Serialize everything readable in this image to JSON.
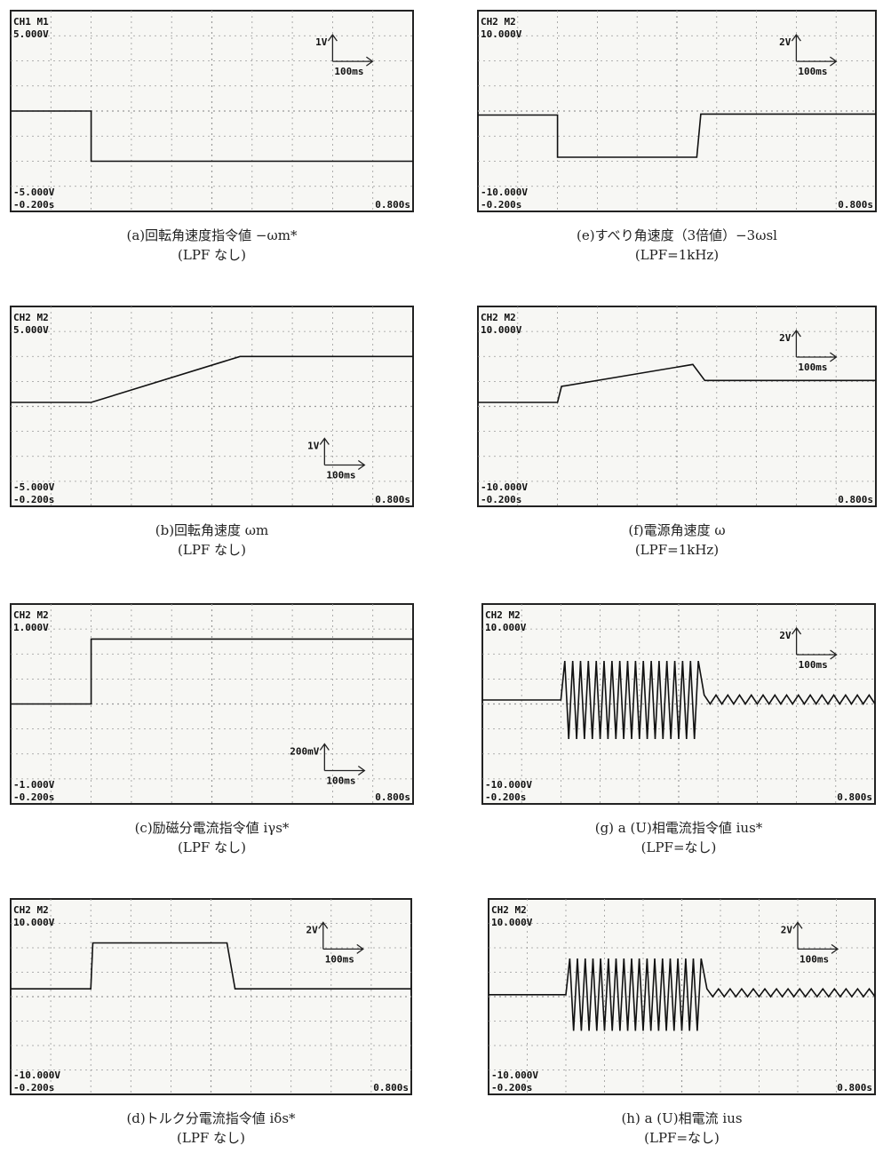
{
  "chart_data": [
    {
      "type": "line",
      "title": "(a)回転角速度指令値 −ωm*",
      "subtitle": "(LPF なし)",
      "channel": "CH1 M1",
      "annotations": [
        "1V",
        "100ms"
      ],
      "grid": true,
      "xlim": [
        -0.2,
        0.8
      ],
      "ylim": [
        -5,
        5
      ],
      "xticks": [
        {
          "value": -0.2,
          "label": "-0.200s"
        },
        {
          "value": 0.8,
          "label": "0.800s"
        }
      ],
      "yticks": [
        {
          "value": -5,
          "label": "-5.000V"
        },
        {
          "value": 5,
          "label": "5.000V"
        }
      ],
      "x": [
        -0.2,
        0,
        0,
        0.8
      ],
      "series": [
        {
          "color": "#111111",
          "values": [
            0,
            0,
            -2.5,
            -2.5
          ]
        }
      ]
    },
    {
      "type": "line",
      "title": "(b)回転角速度 ωm",
      "subtitle": "(LPF なし)",
      "channel": "CH2 M2",
      "annotations": [
        "1V",
        "100ms"
      ],
      "grid": true,
      "xlim": [
        -0.2,
        0.8
      ],
      "ylim": [
        -5,
        5
      ],
      "xticks": [
        {
          "value": -0.2,
          "label": "-0.200s"
        },
        {
          "value": 0.8,
          "label": "0.800s"
        }
      ],
      "yticks": [
        {
          "value": -5,
          "label": "-5.000V"
        },
        {
          "value": 5,
          "label": "5.000V"
        }
      ],
      "x": [
        -0.2,
        0,
        0.37,
        0.8
      ],
      "series": [
        {
          "color": "#111111",
          "values": [
            0.2,
            0.2,
            2.5,
            2.5
          ]
        }
      ]
    },
    {
      "type": "line",
      "title": "(c)励磁分電流指令値 iγs*",
      "subtitle": "(LPF なし)",
      "channel": "CH2 M2",
      "annotations": [
        "200mV",
        "100ms"
      ],
      "grid": true,
      "xlim": [
        -0.2,
        0.8
      ],
      "ylim": [
        -1,
        1
      ],
      "xticks": [
        {
          "value": -0.2,
          "label": "-0.200s"
        },
        {
          "value": 0.8,
          "label": "0.800s"
        }
      ],
      "yticks": [
        {
          "value": -1,
          "label": "-1.000V"
        },
        {
          "value": 1,
          "label": "1.000V"
        }
      ],
      "x": [
        -0.2,
        0,
        0,
        0.8
      ],
      "series": [
        {
          "color": "#111111",
          "values": [
            0,
            0,
            0.65,
            0.65
          ]
        }
      ]
    },
    {
      "type": "line",
      "title": "(d)トルク分電流指令値 iδs*",
      "subtitle": "(LPF なし)",
      "channel": "CH2 M2",
      "annotations": [
        "2V",
        "100ms"
      ],
      "grid": true,
      "xlim": [
        -0.2,
        0.8
      ],
      "ylim": [
        -10,
        10
      ],
      "xticks": [
        {
          "value": -0.2,
          "label": "-0.200s"
        },
        {
          "value": 0.8,
          "label": "0.800s"
        }
      ],
      "yticks": [
        {
          "value": -10,
          "label": "-10.000V"
        },
        {
          "value": 10,
          "label": "10.000V"
        }
      ],
      "x": [
        -0.2,
        0,
        0.005,
        0.34,
        0.36,
        0.8
      ],
      "series": [
        {
          "color": "#111111",
          "values": [
            0.8,
            0.8,
            5.5,
            5.5,
            0.8,
            0.8
          ]
        }
      ]
    },
    {
      "type": "line",
      "title": "(e)すべり角速度（3倍値）−3ωsl",
      "subtitle": "(LPF=1kHz)",
      "channel": "CH2 M2",
      "annotations": [
        "2V",
        "100ms"
      ],
      "grid": true,
      "xlim": [
        -0.2,
        0.8
      ],
      "ylim": [
        -10,
        10
      ],
      "xticks": [
        {
          "value": -0.2,
          "label": "-0.200s"
        },
        {
          "value": 0.8,
          "label": "0.800s"
        }
      ],
      "yticks": [
        {
          "value": -10,
          "label": "-10.000V"
        },
        {
          "value": 10,
          "label": "10.000V"
        }
      ],
      "x": [
        -0.2,
        0,
        0,
        0.35,
        0.36,
        0.8
      ],
      "series": [
        {
          "color": "#111111",
          "values": [
            -0.4,
            -0.4,
            -4.6,
            -4.6,
            -0.3,
            -0.3
          ]
        }
      ]
    },
    {
      "type": "line",
      "title": "(f)電源角速度 ω",
      "subtitle": "(LPF=1kHz)",
      "channel": "CH2 M2",
      "annotations": [
        "2V",
        "100ms"
      ],
      "grid": true,
      "xlim": [
        -0.2,
        0.8
      ],
      "ylim": [
        -10,
        10
      ],
      "xticks": [
        {
          "value": -0.2,
          "label": "-0.200s"
        },
        {
          "value": 0.8,
          "label": "0.800s"
        }
      ],
      "yticks": [
        {
          "value": -10,
          "label": "-10.000V"
        },
        {
          "value": 10,
          "label": "10.000V"
        }
      ],
      "x": [
        -0.2,
        0,
        0.01,
        0.34,
        0.37,
        0.8
      ],
      "series": [
        {
          "color": "#111111",
          "values": [
            0.4,
            0.4,
            2.0,
            4.2,
            2.6,
            2.6
          ]
        }
      ]
    },
    {
      "type": "line",
      "title": "(g) a (U)相電流指令値 ius*",
      "subtitle": "(LPF=なし)",
      "channel": "CH2 M2",
      "annotations": [
        "2V",
        "100ms"
      ],
      "grid": true,
      "xlim": [
        -0.2,
        0.8
      ],
      "ylim": [
        -10,
        10
      ],
      "xticks": [
        {
          "value": -0.2,
          "label": "-0.200s"
        },
        {
          "value": 0.8,
          "label": "0.800s"
        }
      ],
      "yticks": [
        {
          "value": -10,
          "label": "-10.000V"
        },
        {
          "value": 10,
          "label": "10.000V"
        }
      ],
      "x": [
        -0.2,
        0,
        0.01,
        0.02,
        0.03,
        0.04,
        0.05,
        0.06,
        0.07,
        0.08,
        0.09,
        0.1,
        0.11,
        0.12,
        0.13,
        0.14,
        0.15,
        0.16,
        0.17,
        0.18,
        0.19,
        0.2,
        0.21,
        0.22,
        0.23,
        0.24,
        0.25,
        0.26,
        0.27,
        0.28,
        0.29,
        0.3,
        0.31,
        0.32,
        0.33,
        0.34,
        0.35,
        0.365,
        0.38,
        0.395,
        0.41,
        0.425,
        0.44,
        0.455,
        0.47,
        0.485,
        0.5,
        0.515,
        0.53,
        0.545,
        0.56,
        0.575,
        0.59,
        0.605,
        0.62,
        0.635,
        0.65,
        0.665,
        0.68,
        0.695,
        0.71,
        0.725,
        0.74,
        0.755,
        0.77,
        0.785,
        0.8
      ],
      "series": [
        {
          "color": "#111111",
          "values": [
            0.4,
            0.4,
            4.3,
            -3.5,
            4.3,
            -3.5,
            4.3,
            -3.5,
            4.3,
            -3.5,
            4.3,
            -3.5,
            4.3,
            -3.5,
            4.3,
            -3.5,
            4.3,
            -3.5,
            4.3,
            -3.5,
            4.3,
            -3.5,
            4.3,
            -3.5,
            4.3,
            -3.5,
            4.3,
            -3.5,
            4.3,
            -3.5,
            4.3,
            -3.5,
            4.3,
            -3.5,
            4.3,
            -3.5,
            4.3,
            0.9,
            0,
            0.9,
            0,
            0.9,
            0,
            0.9,
            0,
            0.9,
            0,
            0.9,
            0,
            0.9,
            0,
            0.9,
            0,
            0.9,
            0,
            0.9,
            0,
            0.9,
            0,
            0.9,
            0,
            0.9,
            0,
            0.9,
            0,
            0.9,
            0
          ]
        }
      ]
    },
    {
      "type": "line",
      "title": "(h) a (U)相電流 ius",
      "subtitle": "(LPF=なし)",
      "channel": "CH2 M2",
      "annotations": [
        "2V",
        "100ms"
      ],
      "grid": true,
      "xlim": [
        -0.2,
        0.8
      ],
      "ylim": [
        -10,
        10
      ],
      "xticks": [
        {
          "value": -0.2,
          "label": "-0.200s"
        },
        {
          "value": 0.8,
          "label": "0.800s"
        }
      ],
      "yticks": [
        {
          "value": -10,
          "label": "-10.000V"
        },
        {
          "value": 10,
          "label": "10.000V"
        }
      ],
      "x": [
        -0.2,
        0,
        0.01,
        0.02,
        0.03,
        0.04,
        0.05,
        0.06,
        0.07,
        0.08,
        0.09,
        0.1,
        0.11,
        0.12,
        0.13,
        0.14,
        0.15,
        0.16,
        0.17,
        0.18,
        0.19,
        0.2,
        0.21,
        0.22,
        0.23,
        0.24,
        0.25,
        0.26,
        0.27,
        0.28,
        0.29,
        0.3,
        0.31,
        0.32,
        0.33,
        0.34,
        0.35,
        0.365,
        0.38,
        0.395,
        0.41,
        0.425,
        0.44,
        0.455,
        0.47,
        0.485,
        0.5,
        0.515,
        0.53,
        0.545,
        0.56,
        0.575,
        0.59,
        0.605,
        0.62,
        0.635,
        0.65,
        0.665,
        0.68,
        0.695,
        0.71,
        0.725,
        0.74,
        0.755,
        0.77,
        0.785,
        0.8
      ],
      "series": [
        {
          "color": "#111111",
          "values": [
            0.2,
            0.2,
            3.9,
            -3.5,
            3.9,
            -3.5,
            3.9,
            -3.5,
            3.9,
            -3.5,
            3.9,
            -3.5,
            3.9,
            -3.5,
            3.9,
            -3.5,
            3.9,
            -3.5,
            3.9,
            -3.5,
            3.9,
            -3.5,
            3.9,
            -3.5,
            3.9,
            -3.5,
            3.9,
            -3.5,
            3.9,
            -3.5,
            3.9,
            -3.5,
            3.9,
            -3.5,
            3.9,
            -3.5,
            3.9,
            0.8,
            0,
            0.8,
            0,
            0.8,
            0,
            0.8,
            0,
            0.8,
            0,
            0.8,
            0,
            0.8,
            0,
            0.8,
            0,
            0.8,
            0,
            0.8,
            0,
            0.8,
            0,
            0.8,
            0,
            0.8,
            0,
            0.8,
            0,
            0.8,
            0
          ]
        }
      ]
    }
  ]
}
